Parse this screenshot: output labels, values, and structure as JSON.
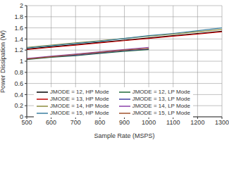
{
  "chart_data": {
    "type": "line",
    "x_label": "Sample Rate (MSPS)",
    "y_label": "Power Dissipation (W)",
    "x": [
      500,
      600,
      700,
      800,
      900,
      1000,
      1100,
      1200,
      1300
    ],
    "xlim": [
      500,
      1300
    ],
    "xticks": [
      500,
      600,
      700,
      800,
      900,
      1000,
      1100,
      1200,
      1300
    ],
    "ylim": [
      0,
      2
    ],
    "yticks": [
      0,
      0.2,
      0.4,
      0.6,
      0.8,
      1,
      1.2,
      1.4,
      1.6,
      1.8,
      2
    ],
    "grid": true,
    "legend": "lower center",
    "series": [
      {
        "name": "JMODE = 12, HP Mode",
        "color": "#000000",
        "values": [
          1.22,
          1.26,
          1.3,
          1.34,
          1.38,
          1.42,
          1.46,
          1.5,
          1.54
        ]
      },
      {
        "name": "JMODE = 13, HP Mode",
        "color": "#c00000",
        "values": [
          1.21,
          1.25,
          1.29,
          1.33,
          1.37,
          1.41,
          1.45,
          1.49,
          1.53
        ]
      },
      {
        "name": "JMODE = 14, HP Mode",
        "color": "#8c8c3c",
        "values": [
          1.25,
          1.29,
          1.33,
          1.37,
          1.41,
          1.45,
          1.49,
          1.53,
          1.57
        ]
      },
      {
        "name": "JMODE = 15, HP Mode",
        "color": "#3a7fa0",
        "values": [
          1.24,
          1.28,
          1.32,
          1.36,
          1.41,
          1.46,
          1.5,
          1.55,
          1.6
        ]
      },
      {
        "name": "JMODE = 12, LP Mode",
        "color": "#1f6b3a",
        "values": [
          1.03,
          1.07,
          1.1,
          1.14,
          1.18,
          1.21,
          null,
          null,
          null
        ]
      },
      {
        "name": "JMODE = 13, LP Mode",
        "color": "#4040a0",
        "values": [
          1.04,
          1.08,
          1.11,
          1.15,
          1.19,
          1.22,
          null,
          null,
          null
        ]
      },
      {
        "name": "JMODE = 14, LP Mode",
        "color": "#8a3fa8",
        "values": [
          1.05,
          1.09,
          1.13,
          1.17,
          1.21,
          1.25,
          null,
          null,
          null
        ]
      },
      {
        "name": "JMODE = 15, LP Mode",
        "color": "#a0522d",
        "values": [
          1.04,
          1.08,
          1.12,
          1.16,
          1.2,
          1.23,
          null,
          null,
          null
        ]
      }
    ]
  }
}
